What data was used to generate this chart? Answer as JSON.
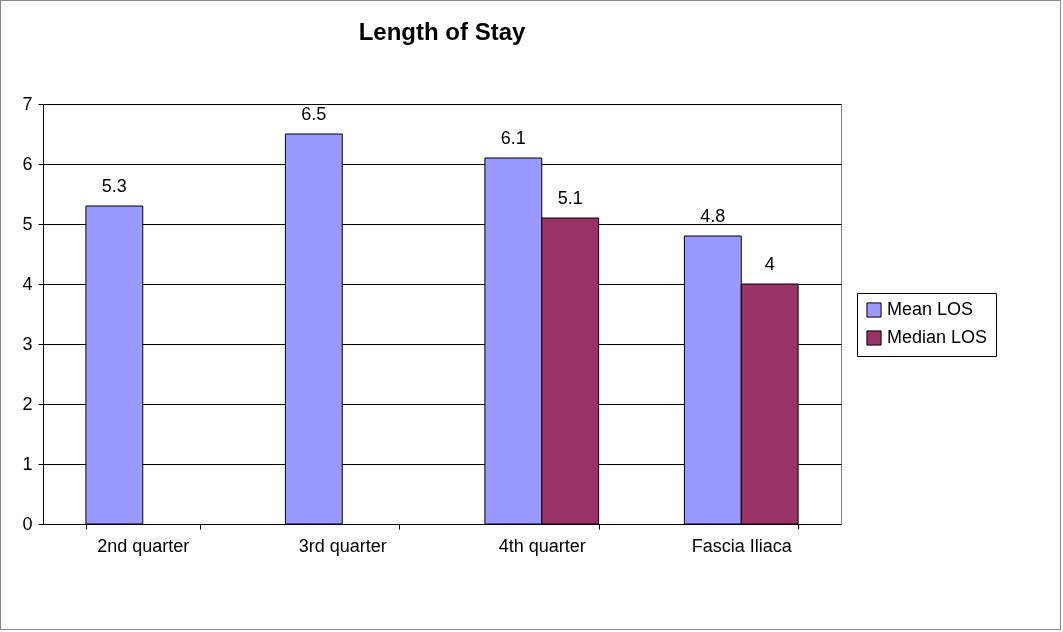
{
  "chart_data": {
    "type": "bar",
    "title": "Length of Stay",
    "categories": [
      "2nd quarter",
      "3rd quarter",
      "4th quarter",
      "Fascia Iliaca"
    ],
    "series": [
      {
        "name": "Mean LOS",
        "color": "#9999ff",
        "values": [
          5.3,
          6.5,
          6.1,
          4.8
        ]
      },
      {
        "name": "Median LOS",
        "color": "#993366",
        "values": [
          null,
          null,
          5.1,
          4
        ]
      }
    ],
    "ylim": [
      0,
      7
    ],
    "yticks": [
      0,
      1,
      2,
      3,
      4,
      5,
      6,
      7
    ],
    "grid": "y",
    "legend": "right",
    "data_labels": true
  }
}
